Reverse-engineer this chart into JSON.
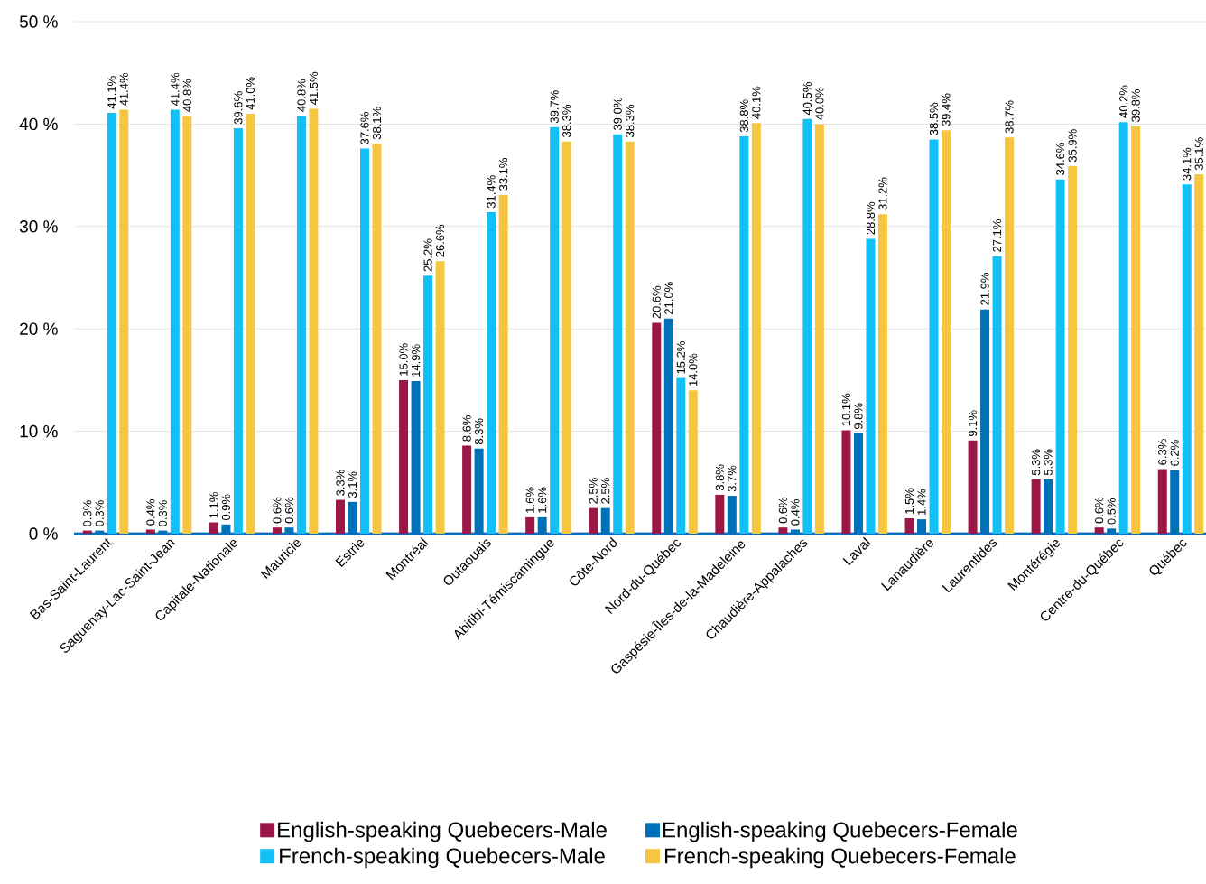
{
  "chart_data": {
    "type": "bar",
    "categories": [
      "Bas-Saint-Laurent",
      "Saguenay-Lac-Saint-Jean",
      "Capitale-Nationale",
      "Mauricie",
      "Estrie",
      "Montréal",
      "Outaouais",
      "Abitibi-Témiscamingue",
      "Côte-Nord",
      "Nord-du-Québec",
      "Gaspésie-Îles-de-la-Madeleine",
      "Chaudière-Appalaches",
      "Laval",
      "Lanaudière",
      "Laurentides",
      "Montérégie",
      "Centre-du-Québec",
      "Québec"
    ],
    "series": [
      {
        "name": "English-speaking Quebecers-Male",
        "color": "#9b1747",
        "values": [
          0.3,
          0.4,
          1.1,
          0.6,
          3.3,
          15.0,
          8.6,
          1.6,
          2.5,
          20.6,
          3.8,
          0.6,
          10.1,
          1.5,
          9.1,
          5.3,
          0.6,
          6.3
        ],
        "value_labels": [
          "0.3%",
          "0.4%",
          "1.1%",
          "0.6%",
          "3.3%",
          "15.0%",
          "8.6%",
          "1.6%",
          "2.5%",
          "20.6%",
          "3.8%",
          "0.6%",
          "10.1%",
          "1.5%",
          "9.1%",
          "5.3%",
          "0.6%",
          "6.3%"
        ]
      },
      {
        "name": "English-speaking Quebecers-Female",
        "color": "#0070b8",
        "values": [
          0.3,
          0.3,
          0.9,
          0.6,
          3.1,
          14.9,
          8.3,
          1.6,
          2.5,
          21.0,
          3.7,
          0.4,
          9.8,
          1.4,
          21.9,
          5.3,
          0.5,
          6.2
        ],
        "value_labels": [
          "0.3%",
          "0.3%",
          "0.9%",
          "0.6%",
          "3.1%",
          "14.9%",
          "8.3%",
          "1.6%",
          "2.5%",
          "21.0%",
          "3.7%",
          "0.4%",
          "9.8%",
          "1.4%",
          "21.9%",
          "5.3%",
          "0.5%",
          "6.2%"
        ]
      },
      {
        "name": "French-speaking Quebecers-Male",
        "color": "#12c0f7",
        "values": [
          41.1,
          41.4,
          39.6,
          40.8,
          37.6,
          25.2,
          31.4,
          39.7,
          39.0,
          15.2,
          38.8,
          40.5,
          28.8,
          38.5,
          27.1,
          34.6,
          40.2,
          34.1
        ],
        "value_labels": [
          "41.1%",
          "41.4%",
          "39.6%",
          "40.8%",
          "37.6%",
          "25.2%",
          "31.4%",
          "39.7%",
          "39.0%",
          "15.2%",
          "38.8%",
          "40.5%",
          "28.8%",
          "38.5%",
          "27.1%",
          "34.6%",
          "40.2%",
          "34.1%"
        ]
      },
      {
        "name": "French-speaking Quebecers-Female",
        "color": "#f6c640",
        "values": [
          41.4,
          40.8,
          41.0,
          41.5,
          38.1,
          26.6,
          33.1,
          38.3,
          38.3,
          14.0,
          40.1,
          40.0,
          31.2,
          39.4,
          38.7,
          35.9,
          39.8,
          35.1
        ],
        "value_labels": [
          "41.4%",
          "40.8%",
          "41.0%",
          "41.5%",
          "38.1%",
          "26.6%",
          "33.1%",
          "38.3%",
          "38.3%",
          "14.0%",
          "40.1%",
          "40.0%",
          "31.2%",
          "39.4%",
          "38.7%",
          "35.9%",
          "39.8%",
          "35.1%"
        ]
      }
    ],
    "ylim": [
      0,
      50
    ],
    "yticks": [
      {
        "value": 0,
        "label": "0 %"
      },
      {
        "value": 10,
        "label": "10 %"
      },
      {
        "value": 20,
        "label": "20 %"
      },
      {
        "value": 30,
        "label": "30 %"
      },
      {
        "value": 40,
        "label": "40 %"
      },
      {
        "value": 50,
        "label": "50 %"
      }
    ],
    "grid": "y",
    "legend": "bottom"
  }
}
